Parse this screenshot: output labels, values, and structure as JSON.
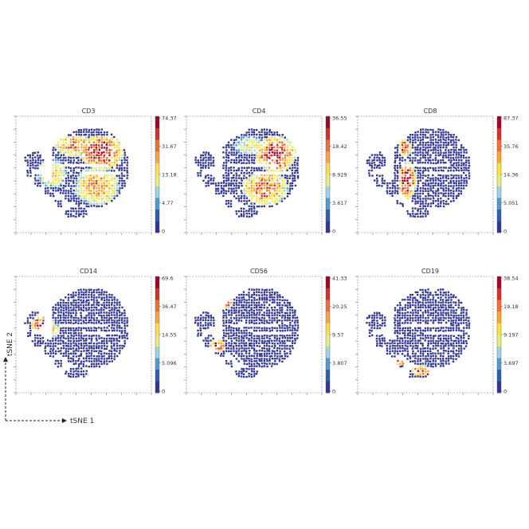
{
  "figure": {
    "axis_x_label": "tSNE 1",
    "axis_y_label": "tSNE 2"
  },
  "palette": {
    "colormap": [
      "#313695",
      "#2a5fb0",
      "#4f9bd0",
      "#9fd3e8",
      "#e6ef7a",
      "#fee040",
      "#fca636",
      "#f46d2e",
      "#d62f27",
      "#a50026"
    ],
    "background_dot": "#3a56a8"
  },
  "chart_data": [
    {
      "type": "scatter",
      "title": "CD3",
      "colorbar_ticks": [
        "74.37",
        "31.67",
        "13.18",
        "4.77",
        "0"
      ],
      "high_regions": [
        {
          "cx": 0.72,
          "cy": 0.28,
          "rx": 0.2,
          "ry": 0.16,
          "level": 1.0
        },
        {
          "cx": 0.48,
          "cy": 0.22,
          "rx": 0.18,
          "ry": 0.1,
          "level": 0.8
        },
        {
          "cx": 0.68,
          "cy": 0.6,
          "rx": 0.2,
          "ry": 0.18,
          "level": 0.75
        },
        {
          "cx": 0.28,
          "cy": 0.48,
          "rx": 0.13,
          "ry": 0.14,
          "level": 0.65
        }
      ]
    },
    {
      "type": "scatter",
      "title": "CD4",
      "colorbar_ticks": [
        "36.55",
        "18.42",
        "8.929",
        "3.617",
        "0"
      ],
      "high_regions": [
        {
          "cx": 0.75,
          "cy": 0.3,
          "rx": 0.18,
          "ry": 0.17,
          "level": 1.0
        },
        {
          "cx": 0.66,
          "cy": 0.62,
          "rx": 0.2,
          "ry": 0.16,
          "level": 0.85
        },
        {
          "cx": 0.52,
          "cy": 0.22,
          "rx": 0.14,
          "ry": 0.09,
          "level": 0.55
        }
      ]
    },
    {
      "type": "scatter",
      "title": "CD8",
      "colorbar_ticks": [
        "87.37",
        "35.76",
        "14.36",
        "5.051",
        "0"
      ],
      "high_regions": [
        {
          "cx": 0.4,
          "cy": 0.55,
          "rx": 0.08,
          "ry": 0.18,
          "level": 1.0
        },
        {
          "cx": 0.38,
          "cy": 0.24,
          "rx": 0.06,
          "ry": 0.08,
          "level": 0.9
        }
      ]
    },
    {
      "type": "scatter",
      "title": "CD14",
      "colorbar_ticks": [
        "69.6",
        "36.47",
        "14.55",
        "5.096",
        "0"
      ],
      "high_regions": [
        {
          "cx": 0.2,
          "cy": 0.39,
          "rx": 0.1,
          "ry": 0.09,
          "level": 1.0
        },
        {
          "cx": 0.3,
          "cy": 0.45,
          "rx": 0.06,
          "ry": 0.06,
          "level": 0.6
        }
      ]
    },
    {
      "type": "scatter",
      "title": "CD56",
      "colorbar_ticks": [
        "41.33",
        "20.25",
        "9.57",
        "3.807",
        "0"
      ],
      "high_regions": [
        {
          "cx": 0.24,
          "cy": 0.6,
          "rx": 0.07,
          "ry": 0.06,
          "level": 1.0
        },
        {
          "cx": 0.32,
          "cy": 0.2,
          "rx": 0.06,
          "ry": 0.05,
          "level": 0.85
        }
      ]
    },
    {
      "type": "scatter",
      "title": "CD19",
      "colorbar_ticks": [
        "38.54",
        "19.18",
        "9.197",
        "3.697",
        "0"
      ],
      "high_regions": [
        {
          "cx": 0.52,
          "cy": 0.83,
          "rx": 0.08,
          "ry": 0.05,
          "level": 0.95
        },
        {
          "cx": 0.34,
          "cy": 0.74,
          "rx": 0.04,
          "ry": 0.04,
          "level": 1.0
        }
      ]
    }
  ]
}
